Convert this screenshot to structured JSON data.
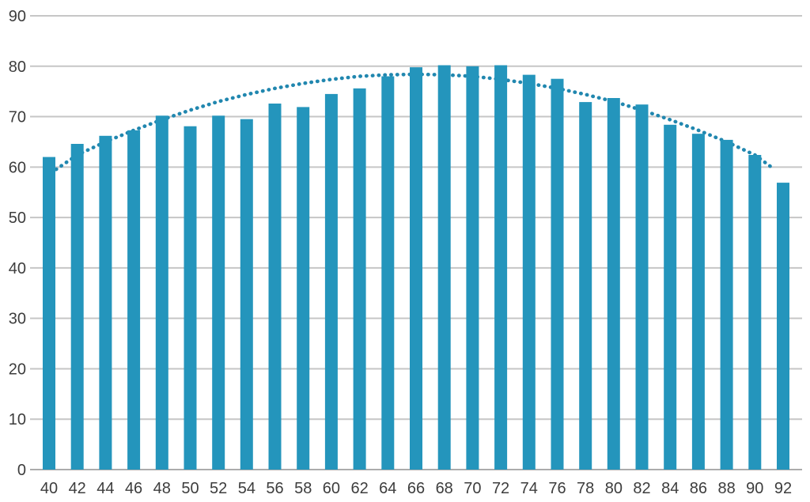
{
  "page": {
    "background": "#ffffff"
  },
  "chart_data": {
    "type": "bar",
    "title": "",
    "xlabel": "",
    "ylabel": "",
    "categories": [
      "40",
      "42",
      "44",
      "46",
      "48",
      "50",
      "52",
      "54",
      "56",
      "58",
      "60",
      "62",
      "64",
      "66",
      "68",
      "70",
      "72",
      "74",
      "76",
      "78",
      "80",
      "82",
      "84",
      "86",
      "88",
      "90",
      "92"
    ],
    "values": [
      62.0,
      64.6,
      66.2,
      67.3,
      70.2,
      68.1,
      70.2,
      69.5,
      72.6,
      71.9,
      74.5,
      75.6,
      78.0,
      79.8,
      80.2,
      80.0,
      80.2,
      78.3,
      77.5,
      72.9,
      73.7,
      72.4,
      68.4,
      66.6,
      65.4,
      62.4,
      56.9
    ],
    "ylim": [
      0,
      90
    ],
    "y_ticks": [
      0,
      10,
      20,
      30,
      40,
      50,
      60,
      70,
      80,
      90
    ],
    "grid": true,
    "legend_position": "none",
    "bar_color": "#2495BC",
    "grid_color": "#C6C6C6",
    "baseline_color": "#ACACAC",
    "tick_label_color": "#3D3D3D",
    "trendline": {
      "type": "polynomial",
      "style": "dotted",
      "color": "#2187AF",
      "values": [
        59.7,
        62.4,
        65.0,
        67.3,
        69.4,
        71.3,
        73.0,
        74.4,
        75.6,
        76.6,
        77.4,
        78.0,
        78.3,
        78.4,
        78.3,
        78.0,
        77.4,
        76.6,
        75.6,
        74.4,
        73.0,
        71.3,
        69.4,
        67.3,
        65.0,
        62.4,
        59.7
      ]
    }
  }
}
